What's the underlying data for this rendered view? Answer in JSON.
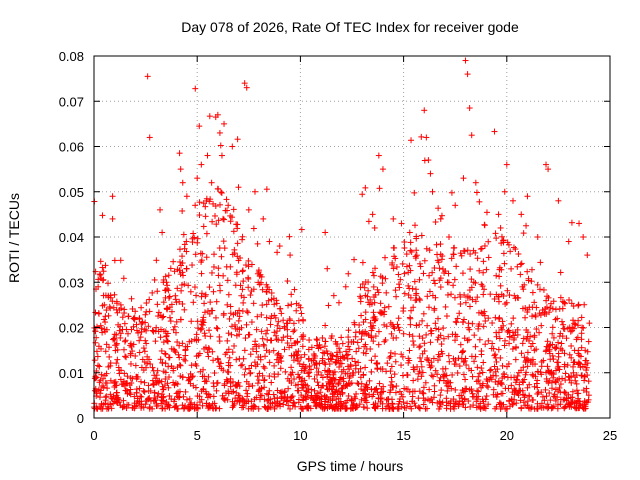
{
  "chart_data": {
    "type": "scatter",
    "title": "Day 078 of 2026, Rate Of TEC Index for receiver gode",
    "xlabel": "GPS time / hours",
    "ylabel": "ROTI / TECUs",
    "xlim": [
      0,
      25
    ],
    "ylim": [
      0,
      0.08
    ],
    "xticks": [
      0,
      5,
      10,
      15,
      20,
      25
    ],
    "yticks": [
      0,
      0.01,
      0.02,
      0.03,
      0.04,
      0.05,
      0.06,
      0.07,
      0.08
    ],
    "xtick_labels": [
      "0",
      "5",
      "10",
      "15",
      "20",
      "25"
    ],
    "ytick_labels": [
      "0",
      "0.01",
      "0.02",
      "0.03",
      "0.04",
      "0.05",
      "0.06",
      "0.07",
      "0.08"
    ],
    "grid": true,
    "marker": "plus",
    "color": "#ff0000",
    "series": [
      {
        "name": "ROTI",
        "description_of_density": "dense cloud of points from 0 to 24 h; baseline roughly 0.002-0.02, peaks near 4-8 h and 13-24 h",
        "x": [
          0.2,
          0.5,
          0.9,
          0.9,
          1.3,
          2.6,
          2.7,
          3.2,
          3.3,
          4.2,
          4.3,
          4.5,
          4.9,
          5.0,
          5.1,
          5.2,
          5.5,
          5.7,
          5.9,
          6.0,
          6.1,
          6.2,
          6.3,
          6.5,
          6.7,
          7.0,
          7.3,
          7.4,
          7.5,
          7.8,
          8.2,
          8.5,
          9.0,
          9.5,
          11.2,
          11.3,
          12.2,
          12.6,
          13.5,
          13.6,
          13.8,
          14.0,
          14.5,
          14.9,
          15.3,
          16.0,
          16.1,
          16.2,
          16.3,
          16.4,
          16.8,
          17.2,
          17.5,
          17.9,
          18.0,
          18.1,
          18.2,
          18.3,
          18.5,
          19.6,
          19.7,
          19.9,
          20.0,
          20.3,
          20.7,
          21.0,
          21.5,
          21.9,
          22.0,
          22.5,
          23.0,
          23.5,
          23.7,
          23.9
        ],
        "y": [
          0.029,
          0.025,
          0.049,
          0.044,
          0.025,
          0.0755,
          0.062,
          0.046,
          0.041,
          0.055,
          0.052,
          0.049,
          0.047,
          0.053,
          0.0645,
          0.056,
          0.058,
          0.052,
          0.0665,
          0.067,
          0.063,
          0.058,
          0.065,
          0.047,
          0.06,
          0.051,
          0.074,
          0.073,
          0.046,
          0.05,
          0.044,
          0.039,
          0.038,
          0.036,
          0.041,
          0.033,
          0.029,
          0.035,
          0.045,
          0.042,
          0.058,
          0.055,
          0.044,
          0.043,
          0.041,
          0.068,
          0.062,
          0.057,
          0.054,
          0.05,
          0.044,
          0.04,
          0.047,
          0.053,
          0.079,
          0.076,
          0.0685,
          0.0625,
          0.052,
          0.045,
          0.042,
          0.05,
          0.056,
          0.048,
          0.045,
          0.049,
          0.04,
          0.056,
          0.055,
          0.048,
          0.039,
          0.043,
          0.04,
          0.036
        ]
      }
    ]
  }
}
